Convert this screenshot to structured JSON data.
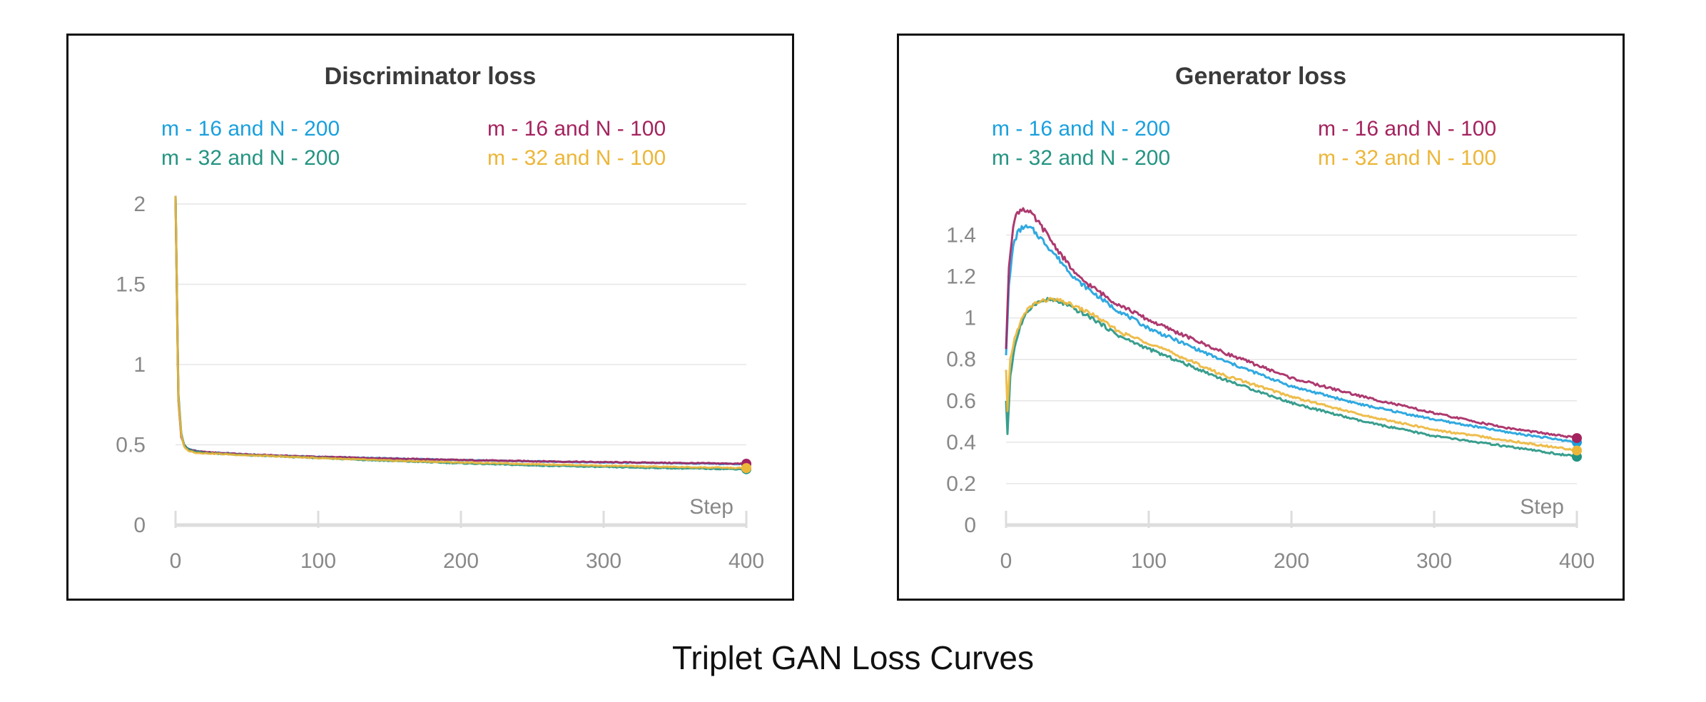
{
  "caption": "Triplet GAN Loss Curves",
  "colors": {
    "m16_N200": "#1aa0dd",
    "m16_N100": "#a4235f",
    "m32_N200": "#249482",
    "m32_N100": "#ecb638",
    "axis_text": "#888888",
    "title_text": "#3a3a3a",
    "grid": "#e6e6e6"
  },
  "chart_data": [
    {
      "type": "line",
      "title": "Discriminator loss",
      "xlabel": "Step",
      "ylabel": "",
      "xlim": [
        0,
        400
      ],
      "ylim": [
        0,
        2
      ],
      "x_ticks": [
        0,
        100,
        200,
        300,
        400
      ],
      "x_tick_labels": [
        "0",
        "100",
        "200",
        "300",
        "400"
      ],
      "y_ticks": [
        0,
        0.5,
        1,
        1.5,
        2
      ],
      "y_tick_labels": [
        "0",
        "0.5",
        "1",
        "1.5",
        "2"
      ],
      "grid": true,
      "legend_position": "top",
      "series": [
        {
          "name": "m - 16 and N - 200",
          "color": "#1aa0dd",
          "x": [
            0,
            2,
            4,
            6,
            8,
            10,
            15,
            20,
            50,
            100,
            150,
            200,
            250,
            300,
            350,
            400
          ],
          "y": [
            2.05,
            0.8,
            0.56,
            0.5,
            0.48,
            0.47,
            0.46,
            0.455,
            0.44,
            0.425,
            0.415,
            0.405,
            0.397,
            0.39,
            0.385,
            0.38
          ]
        },
        {
          "name": "m - 16 and N - 100",
          "color": "#a4235f",
          "x": [
            0,
            2,
            4,
            6,
            8,
            10,
            15,
            20,
            50,
            100,
            150,
            200,
            250,
            300,
            350,
            400
          ],
          "y": [
            2.05,
            0.78,
            0.55,
            0.5,
            0.48,
            0.47,
            0.46,
            0.455,
            0.44,
            0.425,
            0.415,
            0.405,
            0.398,
            0.392,
            0.387,
            0.382
          ]
        },
        {
          "name": "m - 32 and N - 200",
          "color": "#249482",
          "x": [
            0,
            2,
            4,
            6,
            8,
            10,
            15,
            20,
            50,
            100,
            150,
            200,
            250,
            300,
            350,
            400
          ],
          "y": [
            2.05,
            0.82,
            0.57,
            0.5,
            0.48,
            0.465,
            0.455,
            0.45,
            0.435,
            0.418,
            0.4,
            0.385,
            0.372,
            0.362,
            0.354,
            0.348
          ]
        },
        {
          "name": "m - 32 and N - 100",
          "color": "#ecb638",
          "x": [
            0,
            2,
            4,
            6,
            8,
            10,
            15,
            20,
            50,
            100,
            150,
            200,
            250,
            300,
            350,
            400
          ],
          "y": [
            2.05,
            0.79,
            0.56,
            0.49,
            0.47,
            0.46,
            0.45,
            0.448,
            0.435,
            0.418,
            0.402,
            0.39,
            0.38,
            0.37,
            0.362,
            0.355
          ]
        }
      ]
    },
    {
      "type": "line",
      "title": "Generator loss",
      "xlabel": "Step",
      "ylabel": "",
      "xlim": [
        0,
        400
      ],
      "ylim": [
        0,
        1.55
      ],
      "x_ticks": [
        0,
        100,
        200,
        300,
        400
      ],
      "x_tick_labels": [
        "0",
        "100",
        "200",
        "300",
        "400"
      ],
      "y_ticks": [
        0,
        0.2,
        0.4,
        0.6,
        0.8,
        1,
        1.2,
        1.4
      ],
      "y_tick_labels": [
        "0",
        "0.2",
        "0.4",
        "0.6",
        "0.8",
        "1",
        "1.2",
        "1.4"
      ],
      "grid": true,
      "legend_position": "top",
      "series": [
        {
          "name": "m - 16 and N - 200",
          "color": "#1aa0dd",
          "x": [
            0,
            2,
            5,
            8,
            12,
            18,
            25,
            35,
            50,
            75,
            100,
            150,
            200,
            250,
            300,
            350,
            400
          ],
          "y": [
            0.82,
            1.15,
            1.35,
            1.41,
            1.44,
            1.43,
            1.38,
            1.3,
            1.18,
            1.05,
            0.95,
            0.8,
            0.67,
            0.58,
            0.51,
            0.45,
            0.4
          ]
        },
        {
          "name": "m - 16 and N - 100",
          "color": "#a4235f",
          "x": [
            0,
            2,
            5,
            8,
            12,
            18,
            25,
            35,
            50,
            75,
            100,
            150,
            200,
            250,
            300,
            350,
            400
          ],
          "y": [
            0.85,
            1.25,
            1.45,
            1.51,
            1.53,
            1.5,
            1.44,
            1.34,
            1.2,
            1.08,
            0.99,
            0.84,
            0.71,
            0.62,
            0.54,
            0.47,
            0.42
          ]
        },
        {
          "name": "m - 32 and N - 200",
          "color": "#249482",
          "x": [
            0,
            1,
            3,
            6,
            10,
            15,
            20,
            30,
            40,
            60,
            80,
            100,
            150,
            200,
            250,
            300,
            350,
            400
          ],
          "y": [
            0.6,
            0.44,
            0.72,
            0.86,
            0.96,
            1.03,
            1.07,
            1.09,
            1.07,
            1.0,
            0.91,
            0.85,
            0.71,
            0.59,
            0.5,
            0.43,
            0.38,
            0.33
          ]
        },
        {
          "name": "m - 32 and N - 100",
          "color": "#ecb638",
          "x": [
            0,
            1,
            3,
            6,
            10,
            15,
            20,
            30,
            40,
            60,
            80,
            100,
            150,
            200,
            250,
            300,
            350,
            400
          ],
          "y": [
            0.75,
            0.55,
            0.8,
            0.9,
            0.98,
            1.04,
            1.07,
            1.09,
            1.08,
            1.02,
            0.93,
            0.88,
            0.73,
            0.62,
            0.53,
            0.46,
            0.41,
            0.36
          ]
        }
      ]
    }
  ]
}
